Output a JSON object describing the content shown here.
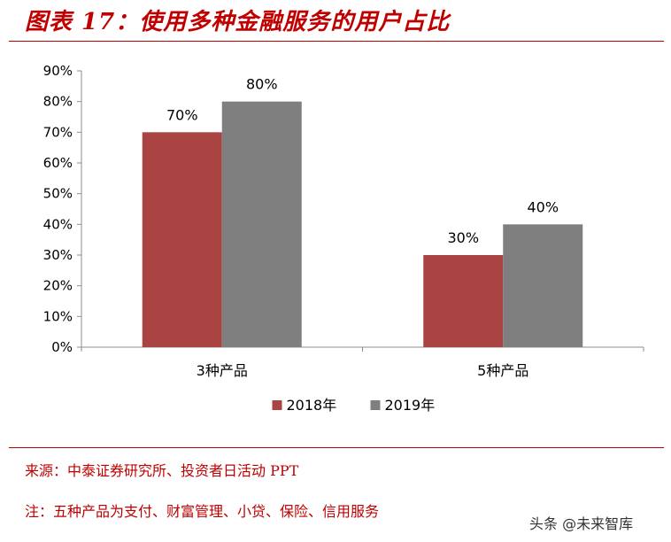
{
  "header": {
    "title": "图表 17：使用多种金融服务的用户占比"
  },
  "footer": {
    "source": "来源：中泰证券研究所、投资者日活动 PPT",
    "note": "注：五种产品为支付、财富管理、小贷、保险、信用服务",
    "watermark": "头条 @未来智库"
  },
  "colors": {
    "accent": "#c00000",
    "series_2018": "#a94442",
    "series_2019": "#7f7f7f"
  },
  "chart_data": {
    "type": "bar",
    "title": "",
    "xlabel": "",
    "ylabel": "",
    "categories": [
      "3种产品",
      "5种产品"
    ],
    "series": [
      {
        "name": "2018年",
        "values": [
          70,
          30
        ],
        "labels": [
          "70%",
          "30%"
        ],
        "color": "#a94442"
      },
      {
        "name": "2019年",
        "values": [
          80,
          40
        ],
        "labels": [
          "80%",
          "40%"
        ],
        "color": "#7f7f7f"
      }
    ],
    "ylim": [
      0,
      90
    ],
    "yticks": [
      "0%",
      "10%",
      "20%",
      "30%",
      "40%",
      "50%",
      "60%",
      "70%",
      "80%",
      "90%"
    ],
    "grid": false,
    "legend_position": "bottom"
  }
}
